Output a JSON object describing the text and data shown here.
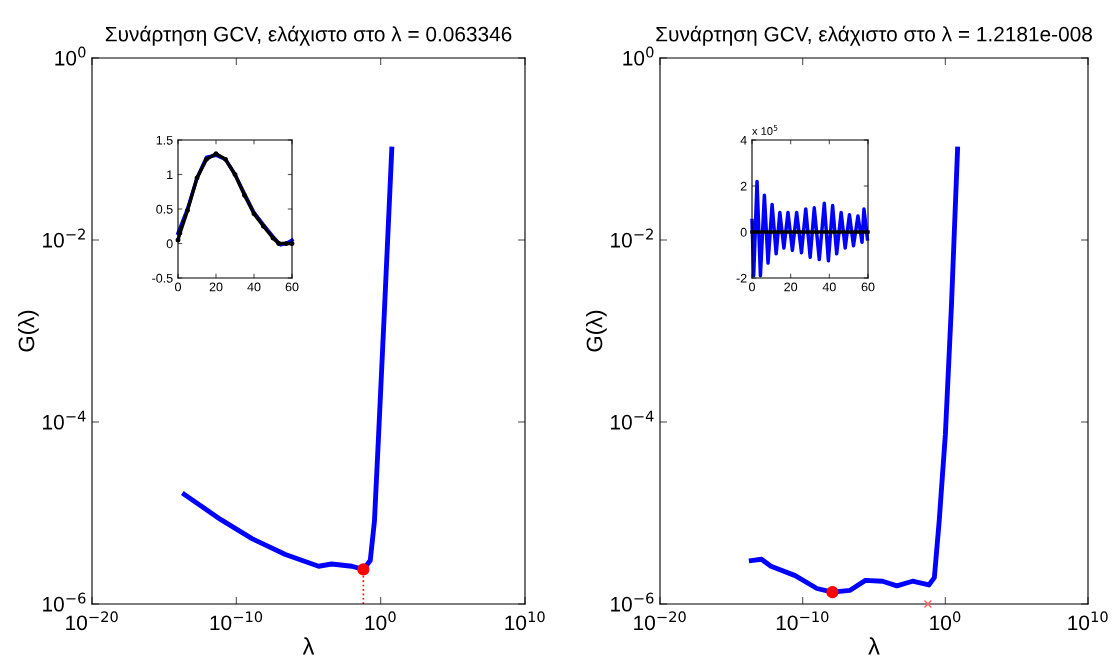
{
  "chart_data": [
    {
      "type": "line",
      "title": "Συνάρτηση GCV, ελάχιστο στο λ = 0.063346",
      "xlabel": "λ",
      "ylabel": "G(λ)",
      "log": "xy",
      "xlim": [
        1e-20,
        10000000000.0
      ],
      "ylim": [
        1e-06,
        1
      ],
      "xticks": [
        {
          "value": 1e-20,
          "label": "10$^{−20}$"
        },
        {
          "value": 1e-10,
          "label": "10$^{−10}$"
        },
        {
          "value": 1,
          "label": "10$^{0}$"
        },
        {
          "value": 10000000000.0,
          "label": "10$^{10}$"
        }
      ],
      "yticks": [
        {
          "value": 1e-06,
          "label": "10$^{−6}$"
        },
        {
          "value": 0.0001,
          "label": "10$^{−4}$"
        },
        {
          "value": 0.01,
          "label": "10$^{−2}$"
        },
        {
          "value": 1,
          "label": "10$^{0}$"
        }
      ],
      "series": [
        {
          "color": "#0000ff",
          "x": [
            2.5e-14,
            8e-12,
            1.3e-09,
            2.5e-07,
            5e-05,
            0.0004,
            0.01,
            0.063346,
            0.19,
            0.37,
            0.72,
            1.9,
            5.9
          ],
          "values": [
            1.6e-05,
            8.5e-06,
            5.2e-06,
            3.5e-06,
            2.6e-06,
            2.75e-06,
            2.6e-06,
            2.4e-06,
            3e-06,
            8.1e-06,
            7.2e-05,
            0.00195,
            0.1
          ]
        },
        {
          "type": "line",
          "color": "#ff0000",
          "line_style": "dotted",
          "x": [
            0.063346,
            0.063346
          ],
          "values": [
            1e-06,
            2.4e-06
          ]
        },
        {
          "type": "scatter",
          "color": "#ff0000",
          "marker": "circle",
          "x": [
            0.063346
          ],
          "values": [
            2.4e-06
          ]
        }
      ]
    },
    {
      "type": "line",
      "xlim": [
        0,
        60
      ],
      "ylim": [
        -0.5,
        1.5
      ],
      "xticks": [
        0,
        20,
        40,
        60
      ],
      "yticks": [
        -0.5,
        0,
        0.5,
        1,
        1.5
      ],
      "series": [
        {
          "color": "#0000ff",
          "x": [
            0,
            5,
            10,
            15,
            20,
            25,
            30,
            35,
            40,
            45,
            50,
            54,
            57,
            60
          ],
          "values": [
            0.15,
            0.5,
            0.95,
            1.25,
            1.28,
            1.22,
            1.0,
            0.72,
            0.45,
            0.27,
            0.1,
            -0.02,
            0.0,
            0.05
          ]
        },
        {
          "type": "line",
          "color": "#000000",
          "marker": "circle",
          "x": [
            0,
            1,
            5,
            10,
            15,
            20,
            25,
            30,
            35,
            40,
            45,
            50,
            53,
            57,
            60
          ],
          "values": [
            0.05,
            0.15,
            0.48,
            0.95,
            1.22,
            1.3,
            1.22,
            1.0,
            0.7,
            0.43,
            0.25,
            0.08,
            0.0,
            0.0,
            0.0
          ]
        }
      ]
    },
    {
      "type": "line",
      "title": "Συνάρτηση GCV, ελάχιστο στο λ = 1.2181e-008",
      "xlabel": "λ",
      "ylabel": "G(λ)",
      "log": "xy",
      "xlim": [
        1e-20,
        10000000000.0
      ],
      "ylim": [
        1e-06,
        1
      ],
      "xticks": [
        {
          "value": 1e-20,
          "label": "10$^{−20}$"
        },
        {
          "value": 1e-10,
          "label": "10$^{−10}$"
        },
        {
          "value": 1,
          "label": "10$^{0}$"
        },
        {
          "value": 10000000000.0,
          "label": "10$^{10}$"
        }
      ],
      "yticks": [
        {
          "value": 1e-06,
          "label": "10$^{−6}$"
        },
        {
          "value": 0.0001,
          "label": "10$^{−4}$"
        },
        {
          "value": 0.01,
          "label": "10$^{−2}$"
        },
        {
          "value": 1,
          "label": "10$^{0}$"
        }
      ],
      "series": [
        {
          "color": "#0000ff",
          "x": [
            2.5e-14,
            1.3e-13,
            6e-13,
            3e-11,
            1e-09,
            1.2181e-08,
            2e-07,
            2.5e-06,
            4e-05,
            0.0004,
            0.005,
            0.07,
            0.17,
            0.37,
            1,
            2.7,
            7.2
          ],
          "values": [
            3e-06,
            3.1e-06,
            2.6e-06,
            2.05e-06,
            1.48e-06,
            1.35e-06,
            1.41e-06,
            1.82e-06,
            1.78e-06,
            1.58e-06,
            1.78e-06,
            1.62e-06,
            1.95e-06,
            8.1e-06,
            7.2e-05,
            0.00195,
            0.1
          ]
        },
        {
          "type": "scatter",
          "color": "#ff0000",
          "marker": "circle",
          "x": [
            1.2181e-08
          ],
          "values": [
            1.35e-06
          ]
        },
        {
          "type": "scatter",
          "color": "#ff6060",
          "marker": "cross",
          "x": [
            0.06
          ],
          "values": [
            1e-06
          ]
        }
      ]
    },
    {
      "type": "line",
      "xlim": [
        0,
        60
      ],
      "ylim": [
        -2,
        4
      ],
      "xticks": [
        0,
        20,
        40,
        60
      ],
      "yticks": [
        -2,
        0,
        2,
        4
      ],
      "annotations": [
        "x 10$^{5}$"
      ],
      "series": [
        {
          "color": "#0000ff",
          "x": [
            0,
            0.87,
            2.6,
            4.35,
            6.4,
            8.3,
            10.4,
            12.5,
            14.4,
            16.5,
            18.6,
            20.9,
            23.1,
            25.6,
            27.8,
            30.1,
            32.2,
            34.8,
            37.4,
            39.5,
            41.7,
            43.8,
            46.1,
            48.2,
            50.4,
            52.5,
            54.8,
            56.9,
            57.9,
            59.7
          ],
          "values": [
            0.5,
            -1.9,
            2.2,
            -1.9,
            1.6,
            -1.35,
            1.2,
            -0.95,
            0.85,
            -0.7,
            0.85,
            -0.8,
            0.85,
            -0.9,
            1.0,
            -1.1,
            1.05,
            -1.2,
            1.25,
            -1.25,
            1.15,
            -0.95,
            0.85,
            -0.7,
            0.75,
            -0.6,
            0.7,
            -0.45,
            1.0,
            -0.3
          ]
        },
        {
          "type": "line",
          "color": "#000000",
          "x": [
            0,
            60
          ],
          "values": [
            0,
            0
          ]
        }
      ]
    }
  ]
}
